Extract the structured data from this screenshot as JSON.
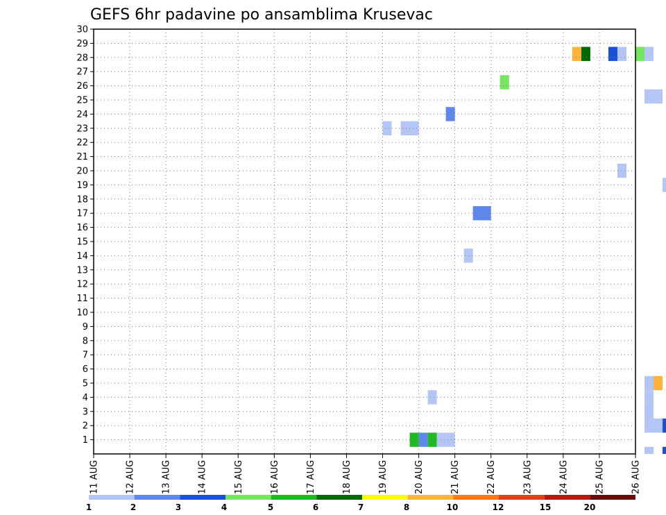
{
  "chart_data": {
    "type": "heatmap",
    "title": "GEFS 6hr padavine po ansamblima Krusevac",
    "x_tick_labels": [
      "11 AUG",
      "12 AUG",
      "13 AUG",
      "14 AUG",
      "15 AUG",
      "16 AUG",
      "17 AUG",
      "18 AUG",
      "19 AUG",
      "20 AUG",
      "21 AUG",
      "22 AUG",
      "23 AUG",
      "24 AUG",
      "25 AUG",
      "26 AUG"
    ],
    "x_range_days": [
      0,
      15
    ],
    "steps_per_day": 4,
    "y_tick_labels": [
      "1",
      "2",
      "3",
      "4",
      "5",
      "6",
      "7",
      "8",
      "9",
      "10",
      "11",
      "12",
      "13",
      "14",
      "15",
      "16",
      "17",
      "18",
      "19",
      "20",
      "21",
      "22",
      "23",
      "24",
      "25",
      "26",
      "27",
      "28",
      "29",
      "30"
    ],
    "y_range": [
      0,
      30
    ],
    "grid": true,
    "colorbar": {
      "colors": [
        "#b3c6f6",
        "#5e88ea",
        "#1a4fd8",
        "#76e660",
        "#1fba1f",
        "#006a00",
        "#ffff00",
        "#ffb33c",
        "#ff7a00",
        "#e83b1a",
        "#c01410",
        "#6a0b0b"
      ],
      "labels": [
        "1",
        "2",
        "3",
        "4",
        "5",
        "6",
        "7",
        "8",
        "10",
        "12",
        "15",
        "20"
      ]
    },
    "cells": [
      {
        "t": 8.0,
        "e": 22.5,
        "v": 1,
        "w": 1,
        "h": 1
      },
      {
        "t": 8.5,
        "e": 22.5,
        "v": 1,
        "w": 2,
        "h": 1
      },
      {
        "t": 9.75,
        "e": 23.5,
        "v": 2,
        "w": 1,
        "h": 1
      },
      {
        "t": 11.25,
        "e": 25.75,
        "v": 4,
        "w": 1,
        "h": 1
      },
      {
        "t": 10.5,
        "e": 16.5,
        "v": 2,
        "w": 2,
        "h": 1
      },
      {
        "t": 10.25,
        "e": 13.5,
        "v": 1,
        "w": 1,
        "h": 1
      },
      {
        "t": 13.25,
        "e": 27.75,
        "v": 8,
        "w": 1,
        "h": 1
      },
      {
        "t": 13.5,
        "e": 27.75,
        "v": 6,
        "w": 1,
        "h": 1
      },
      {
        "t": 14.25,
        "e": 27.75,
        "v": 3,
        "w": 1,
        "h": 1
      },
      {
        "t": 14.5,
        "e": 27.75,
        "v": 1,
        "w": 1,
        "h": 1
      },
      {
        "t": 15.0,
        "e": 27.75,
        "v": 4,
        "w": 1,
        "h": 1
      },
      {
        "t": 15.25,
        "e": 27.75,
        "v": 1,
        "w": 1,
        "h": 1
      },
      {
        "t": 15.25,
        "e": 24.75,
        "v": 1,
        "w": 2,
        "h": 1
      },
      {
        "t": 14.5,
        "e": 19.5,
        "v": 1,
        "w": 1,
        "h": 1
      },
      {
        "t": 15.75,
        "e": 18.5,
        "v": 1,
        "w": 1,
        "h": 1
      },
      {
        "t": 16.0,
        "e": 18.5,
        "v": 2,
        "w": 1,
        "h": 1
      },
      {
        "t": 15.25,
        "e": 4.5,
        "v": 1,
        "w": 1,
        "h": 1
      },
      {
        "t": 15.5,
        "e": 4.5,
        "v": 8,
        "w": 1,
        "h": 1
      },
      {
        "t": 16.25,
        "e": 4.5,
        "v": 2,
        "w": 1,
        "h": 1
      },
      {
        "t": 16.5,
        "e": 4.5,
        "v": 1,
        "w": 1,
        "h": 1
      },
      {
        "t": 15.25,
        "e": 3.5,
        "v": 1,
        "w": 1,
        "h": 1
      },
      {
        "t": 15.25,
        "e": 2.5,
        "v": 1,
        "w": 1,
        "h": 1
      },
      {
        "t": 15.25,
        "e": 1.5,
        "v": 1,
        "w": 2,
        "h": 1
      },
      {
        "t": 15.75,
        "e": 1.5,
        "v": 3,
        "w": 1,
        "h": 1
      },
      {
        "t": 15.25,
        "e": 0.0,
        "v": 1,
        "w": 1,
        "h": 0.5
      },
      {
        "t": 15.75,
        "e": 0.0,
        "v": 3,
        "w": 1,
        "h": 0.5
      },
      {
        "t": 9.25,
        "e": 3.5,
        "v": 1,
        "w": 1,
        "h": 1
      },
      {
        "t": 8.75,
        "e": 0.5,
        "v": 5,
        "w": 1,
        "h": 1
      },
      {
        "t": 9.0,
        "e": 0.5,
        "v": 2,
        "w": 1,
        "h": 1
      },
      {
        "t": 9.25,
        "e": 0.5,
        "v": 5,
        "w": 1,
        "h": 1
      },
      {
        "t": 9.5,
        "e": 0.5,
        "v": 1,
        "w": 2,
        "h": 1
      }
    ]
  }
}
